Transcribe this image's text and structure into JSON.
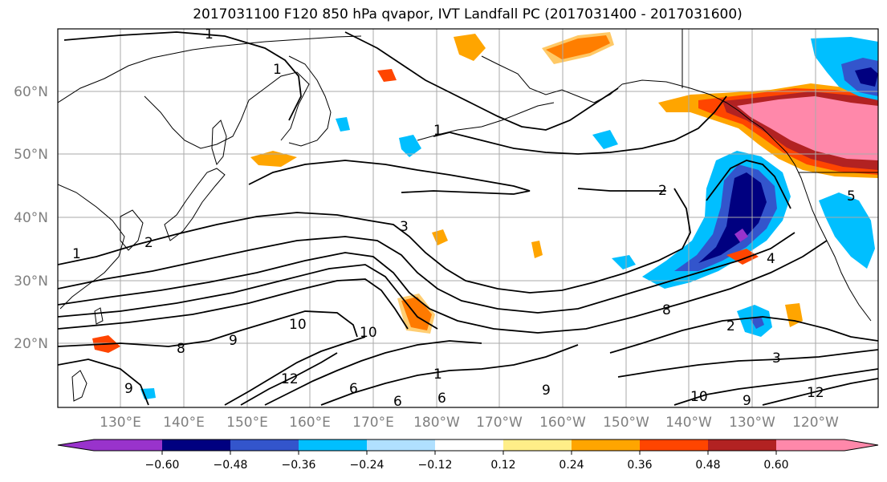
{
  "title": "2017031100 F120 850 hPa qvapor, IVT Landfall PC (2017031400 - 2017031600)",
  "latitude_labels": [
    "60°N",
    "50°N",
    "40°N",
    "30°N",
    "20°N"
  ],
  "longitude_labels": [
    "130°E",
    "140°E",
    "150°E",
    "160°E",
    "170°E",
    "180°W",
    "170°W",
    "160°W",
    "150°W",
    "140°W",
    "130°W",
    "120°W"
  ],
  "contour_labels": [
    "1",
    "1",
    "1",
    "1",
    "1",
    "2",
    "2",
    "2",
    "3",
    "3",
    "4",
    "5",
    "6",
    "6",
    "6",
    "8",
    "8",
    "9",
    "9",
    "9",
    "9",
    "10",
    "10",
    "10",
    "12",
    "12"
  ],
  "colorbar": {
    "colors": [
      "#9933cc",
      "#000080",
      "#3355cc",
      "#00bfff",
      "#b0e0ff",
      "#ffffff",
      "#ffee88",
      "#ffa500",
      "#ff4500",
      "#b22222",
      "#ff88aa"
    ],
    "tick_labels": [
      "−0.60",
      "−0.48",
      "−0.36",
      "−0.24",
      "−0.12",
      "0.12",
      "0.24",
      "0.36",
      "0.48",
      "0.60"
    ]
  },
  "colors": {
    "grid": "#aaaaaa",
    "contour": "#000000",
    "coast": "#000000",
    "axis_label": "#7f7f7f"
  }
}
